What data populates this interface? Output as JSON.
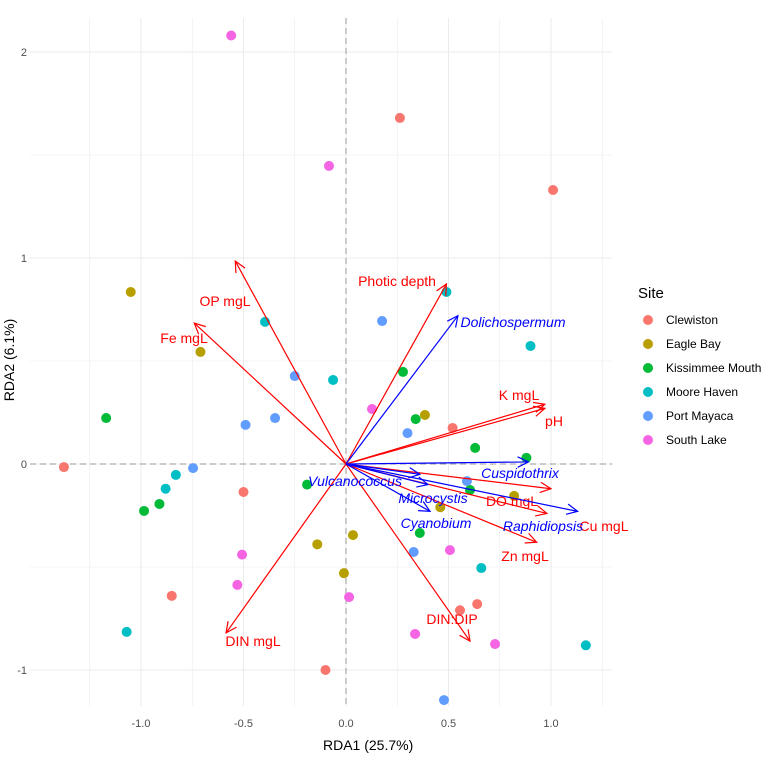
{
  "chart_data": {
    "type": "scatter",
    "title": "",
    "xlabel": "RDA1 (25.7%)",
    "ylabel": "RDA2 (6.1%)",
    "xlim": [
      -1.5,
      1.3
    ],
    "ylim": [
      -1.2,
      2.15
    ],
    "x_ticks": [
      -1.0,
      -0.5,
      0.0,
      0.5,
      1.0
    ],
    "x_tick_labels": [
      "-1.0",
      "-0.5",
      "0.0",
      "0.5",
      "1.0"
    ],
    "y_ticks": [
      -1,
      0,
      1,
      2
    ],
    "y_tick_labels": [
      "-1",
      "0",
      "1",
      "2"
    ],
    "grid": true,
    "legend": {
      "title": "Site",
      "placement": "right"
    },
    "series": [
      {
        "name": "Clewiston",
        "color": "#F8766D",
        "points": [
          [
            -1.376,
            -0.015
          ],
          [
            -0.5,
            -0.136
          ],
          [
            -0.85,
            -0.64
          ],
          [
            -0.1,
            -1.0
          ],
          [
            0.263,
            1.68
          ],
          [
            1.01,
            1.33
          ],
          [
            0.52,
            0.175
          ],
          [
            0.556,
            -0.71
          ],
          [
            0.64,
            -0.68
          ]
        ]
      },
      {
        "name": "Eagle Bay",
        "color": "#B79F00",
        "points": [
          [
            -1.05,
            0.835
          ],
          [
            -0.71,
            0.544
          ],
          [
            0.385,
            0.238
          ],
          [
            0.46,
            -0.21
          ],
          [
            0.82,
            -0.155
          ],
          [
            -0.14,
            -0.39
          ],
          [
            0.034,
            -0.345
          ],
          [
            -0.01,
            -0.53
          ]
        ]
      },
      {
        "name": "Kissimmee Mouth",
        "color": "#00BA38",
        "points": [
          [
            -1.17,
            0.223
          ],
          [
            -0.91,
            -0.194
          ],
          [
            -0.985,
            -0.228
          ],
          [
            -0.19,
            -0.1
          ],
          [
            0.278,
            0.447
          ],
          [
            0.34,
            0.218
          ],
          [
            0.63,
            0.078
          ],
          [
            0.605,
            -0.126
          ],
          [
            0.88,
            0.03
          ],
          [
            0.36,
            -0.335
          ]
        ]
      },
      {
        "name": "Moore Haven",
        "color": "#00BFC4",
        "points": [
          [
            -1.07,
            -0.815
          ],
          [
            -0.83,
            -0.053
          ],
          [
            -0.88,
            -0.12
          ],
          [
            -0.395,
            0.69
          ],
          [
            -0.063,
            0.408
          ],
          [
            0.49,
            0.835
          ],
          [
            0.9,
            0.573
          ],
          [
            0.66,
            -0.505
          ],
          [
            1.17,
            -0.88
          ]
        ]
      },
      {
        "name": "Port Mayaca",
        "color": "#619CFF",
        "points": [
          [
            -0.746,
            -0.02
          ],
          [
            -0.49,
            0.19
          ],
          [
            -0.346,
            0.223
          ],
          [
            -0.25,
            0.427
          ],
          [
            0.176,
            0.694
          ],
          [
            0.3,
            0.15
          ],
          [
            0.59,
            -0.083
          ],
          [
            0.33,
            -0.427
          ],
          [
            0.478,
            -1.146
          ]
        ]
      },
      {
        "name": "South Lake",
        "color": "#F564E3",
        "points": [
          [
            -0.56,
            2.08
          ],
          [
            -0.083,
            1.447
          ],
          [
            0.127,
            0.267
          ],
          [
            -0.507,
            -0.44
          ],
          [
            -0.53,
            -0.587
          ],
          [
            0.015,
            -0.646
          ],
          [
            0.337,
            -0.825
          ],
          [
            0.507,
            -0.418
          ],
          [
            0.727,
            -0.874
          ]
        ]
      }
    ],
    "env_arrows": {
      "color": "#FF0000",
      "items": [
        {
          "label": "Photic depth",
          "x": 0.49,
          "y": 0.874
        },
        {
          "label": "OP mgL",
          "x": -0.54,
          "y": 0.985
        },
        {
          "label": "Fe mgL",
          "x": -0.74,
          "y": 0.684
        },
        {
          "label": "K mgL",
          "x": 0.97,
          "y": 0.29
        },
        {
          "label": "pH",
          "x": 0.97,
          "y": 0.27
        },
        {
          "label": "DO mgL",
          "x": 1.0,
          "y": -0.12
        },
        {
          "label": "Cu mgL",
          "x": 0.98,
          "y": -0.24
        },
        {
          "label": "Zn mgL",
          "x": 0.93,
          "y": -0.38
        },
        {
          "label": "DIN:DIP",
          "x": 0.605,
          "y": -0.86
        },
        {
          "label": "DIN mgL",
          "x": -0.585,
          "y": -0.82
        }
      ]
    },
    "species_arrows": {
      "color": "#0000FF",
      "items": [
        {
          "label": "Dolichospermum",
          "x": 0.546,
          "y": 0.72
        },
        {
          "label": "Cuspidothrix",
          "x": 0.89,
          "y": 0.01
        },
        {
          "label": "Raphidiopsis",
          "x": 1.13,
          "y": -0.23
        },
        {
          "label": "Microcystis",
          "x": 0.4,
          "y": -0.1
        },
        {
          "label": "Cyanobium",
          "x": 0.41,
          "y": -0.23
        },
        {
          "label": "Vulcanococcus",
          "x": 0.36,
          "y": -0.05
        }
      ]
    }
  }
}
